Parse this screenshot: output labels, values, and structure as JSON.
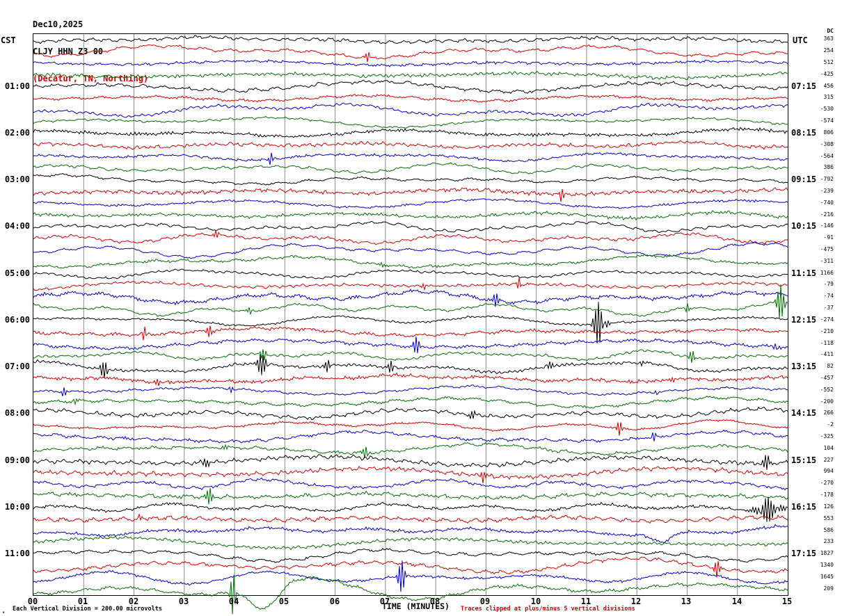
{
  "title": {
    "date": "Dec10,2025",
    "station": "CLJY HHN Z3 00",
    "location": "(Decatur, TN, Northing)"
  },
  "axis": {
    "left_tz": "CST",
    "right_tz": "UTC",
    "dc_header": "DC",
    "x_label": "TIME (MINUTES)"
  },
  "footer": {
    "left": "Each Vertical Division =  200.00 microvolts",
    "right": "Traces clipped at plus/minus 5 vertical divisions",
    "corner_mark": "▴"
  },
  "colors": {
    "trace_cycle": [
      "#000000",
      "#d40000",
      "#0000cc",
      "#007000"
    ],
    "grid": "#8a8a8a",
    "title_accent": "#d40000"
  },
  "chart_data": {
    "type": "line",
    "title": "CLJY HHN Z3 00 helicorder, Decatur TN Northing, Dec10,2025",
    "rows": 48,
    "minutes_per_row": 15,
    "x_range_minutes": [
      0,
      15
    ],
    "x_ticks": [
      "00",
      "01",
      "02",
      "03",
      "04",
      "05",
      "06",
      "07",
      "08",
      "09",
      "10",
      "11",
      "12",
      "13",
      "14",
      "15"
    ],
    "left_times": [
      "01:00",
      "02:00",
      "03:00",
      "04:00",
      "05:00",
      "06:00",
      "07:00",
      "08:00",
      "09:00",
      "10:00",
      "11:00"
    ],
    "right_times": [
      "07:15",
      "08:15",
      "09:15",
      "10:15",
      "11:15",
      "12:15",
      "13:15",
      "14:15",
      "15:15",
      "16:15",
      "17:15"
    ],
    "trace_color_cycle": [
      "black",
      "red",
      "blue",
      "green"
    ],
    "vertical_division_microvolts": 200.0,
    "clip_divisions": 5,
    "dc_offsets": [
      363,
      254,
      512,
      -425,
      456,
      315,
      -530,
      -574,
      806,
      -308,
      -564,
      386,
      -792,
      -239,
      -740,
      -216,
      -146,
      -91,
      -475,
      -311,
      1166,
      -79,
      -74,
      -37,
      -274,
      -210,
      -118,
      -411,
      82,
      -457,
      -552,
      -200,
      266,
      -2,
      -325,
      104,
      227,
      994,
      -270,
      -178,
      126,
      553,
      586,
      233,
      1827,
      1340,
      1645,
      209
    ],
    "events": [
      {
        "row": 1,
        "minute": 6.65,
        "amp": 10,
        "width": 3
      },
      {
        "row": 10,
        "minute": 4.72,
        "amp": 9,
        "width": 3
      },
      {
        "row": 13,
        "minute": 10.5,
        "amp": 11,
        "width": 3
      },
      {
        "row": 17,
        "minute": 3.62,
        "amp": 10,
        "width": 3
      },
      {
        "row": 19,
        "minute": 6.95,
        "amp": 9,
        "width": 3
      },
      {
        "row": 21,
        "minute": 7.78,
        "amp": 11,
        "width": 3
      },
      {
        "row": 21,
        "minute": 9.65,
        "amp": 10,
        "width": 3
      },
      {
        "row": 22,
        "minute": 9.2,
        "amp": 12,
        "width": 4
      },
      {
        "row": 23,
        "minute": 4.32,
        "amp": 12,
        "width": 4
      },
      {
        "row": 23,
        "minute": 13.0,
        "amp": 9,
        "width": 3
      },
      {
        "row": 23,
        "minute": 14.85,
        "amp": 26,
        "width": 6
      },
      {
        "row": 24,
        "minute": 11.27,
        "amp": 40,
        "width": 8
      },
      {
        "row": 25,
        "minute": 2.2,
        "amp": 9,
        "width": 3
      },
      {
        "row": 25,
        "minute": 3.5,
        "amp": 11,
        "width": 3
      },
      {
        "row": 26,
        "minute": 7.6,
        "amp": 13,
        "width": 5
      },
      {
        "row": 26,
        "minute": 14.78,
        "amp": 12,
        "width": 4
      },
      {
        "row": 27,
        "minute": 4.6,
        "amp": 13,
        "width": 5
      },
      {
        "row": 27,
        "minute": 13.1,
        "amp": 11,
        "width": 4
      },
      {
        "row": 28,
        "minute": 1.42,
        "amp": 14,
        "width": 6
      },
      {
        "row": 28,
        "minute": 4.55,
        "amp": 16,
        "width": 8
      },
      {
        "row": 28,
        "minute": 5.85,
        "amp": 10,
        "width": 4
      },
      {
        "row": 28,
        "minute": 7.1,
        "amp": 9,
        "width": 4
      },
      {
        "row": 28,
        "minute": 10.3,
        "amp": 11,
        "width": 4
      },
      {
        "row": 28,
        "minute": 12.15,
        "amp": 12,
        "width": 4
      },
      {
        "row": 29,
        "minute": 2.46,
        "amp": 12,
        "width": 4
      },
      {
        "row": 29,
        "minute": 12.7,
        "amp": 11,
        "width": 4
      },
      {
        "row": 30,
        "minute": 0.6,
        "amp": 10,
        "width": 3
      },
      {
        "row": 30,
        "minute": 3.9,
        "amp": 11,
        "width": 4
      },
      {
        "row": 30,
        "minute": 12.4,
        "amp": 10,
        "width": 3
      },
      {
        "row": 31,
        "minute": 0.8,
        "amp": 11,
        "width": 4
      },
      {
        "row": 32,
        "minute": 8.75,
        "amp": 12,
        "width": 5
      },
      {
        "row": 33,
        "minute": 11.66,
        "amp": 12,
        "width": 4
      },
      {
        "row": 34,
        "minute": 12.35,
        "amp": 10,
        "width": 3
      },
      {
        "row": 35,
        "minute": 3.85,
        "amp": 11,
        "width": 4
      },
      {
        "row": 35,
        "minute": 6.6,
        "amp": 9,
        "width": 3
      },
      {
        "row": 36,
        "minute": 3.4,
        "amp": 13,
        "width": 5
      },
      {
        "row": 36,
        "minute": 14.55,
        "amp": 14,
        "width": 6
      },
      {
        "row": 37,
        "minute": 8.95,
        "amp": 10,
        "width": 3
      },
      {
        "row": 39,
        "minute": 3.5,
        "amp": 12,
        "width": 5
      },
      {
        "row": 40,
        "minute": 14.6,
        "amp": 18,
        "width": 18
      },
      {
        "row": 41,
        "minute": 2.1,
        "amp": 10,
        "width": 3
      },
      {
        "row": 42,
        "minute": 12.5,
        "amp": -14,
        "width": 18,
        "shape": "swell"
      },
      {
        "row": 45,
        "minute": 13.6,
        "amp": 14,
        "width": 4
      },
      {
        "row": 46,
        "minute": 7.32,
        "amp": 22,
        "width": 6
      },
      {
        "row": 47,
        "minute": 3.97,
        "amp": 30,
        "width": 4
      },
      {
        "row": 47,
        "minute": 4.6,
        "amp": -35,
        "width": 28,
        "shape": "swell"
      }
    ]
  }
}
